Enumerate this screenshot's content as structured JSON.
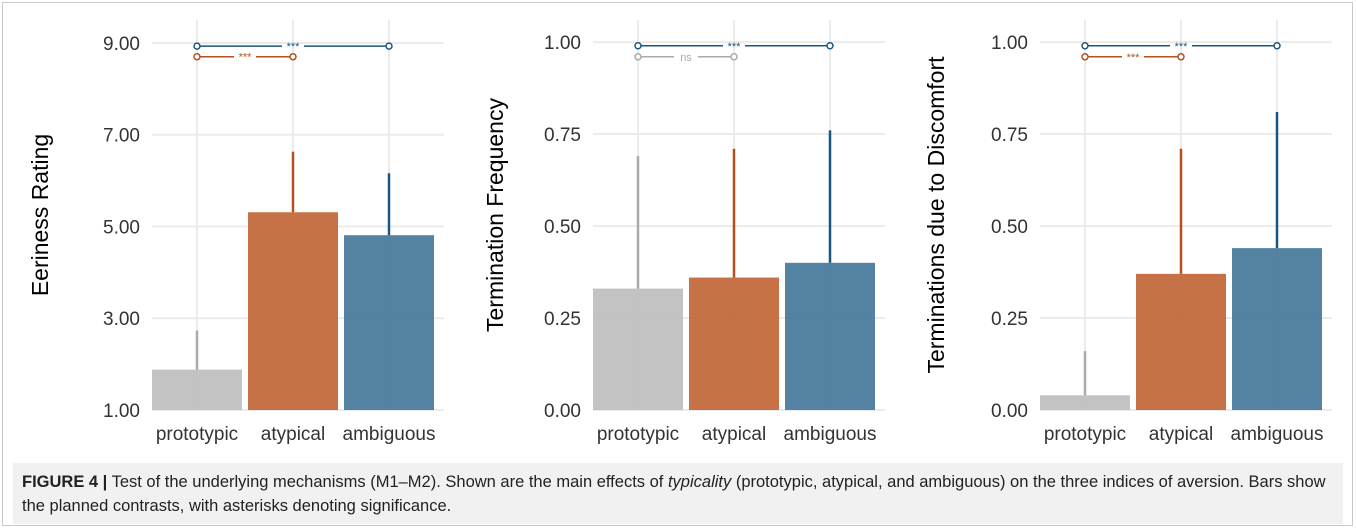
{
  "colors": {
    "prototypic": "#c0c0c0",
    "atypical": "#c46a3c",
    "ambiguous": "#4a7b9d",
    "prototypic_line": "#aaaaaa",
    "atypical_line": "#b4501d",
    "ambiguous_line": "#1a5680",
    "grid": "#ebebeb"
  },
  "chart_data": [
    {
      "type": "bar",
      "ylabel": "Eeriness Rating",
      "categories": [
        "prototypic",
        "atypical",
        "ambiguous"
      ],
      "values": [
        1.88,
        5.31,
        4.81
      ],
      "error_upper": [
        2.73,
        6.63,
        6.16
      ],
      "ylim": [
        1.0,
        9.5
      ],
      "yticks": [
        1.0,
        3.0,
        5.0,
        7.0,
        9.0
      ],
      "ytick_labels": [
        "1.00",
        "3.00",
        "5.00",
        "7.00",
        "9.00"
      ],
      "significance": [
        {
          "from": "prototypic",
          "to": "ambiguous",
          "y": 8.93,
          "label": "***",
          "color": "ambiguous_line"
        },
        {
          "from": "prototypic",
          "to": "atypical",
          "y": 8.7,
          "label": "***",
          "color": "atypical_line"
        }
      ]
    },
    {
      "type": "bar",
      "ylabel": "Termination Frequency",
      "categories": [
        "prototypic",
        "atypical",
        "ambiguous"
      ],
      "values": [
        0.33,
        0.36,
        0.4
      ],
      "error_upper": [
        0.69,
        0.71,
        0.76
      ],
      "ylim": [
        0.0,
        1.06
      ],
      "yticks": [
        0.0,
        0.25,
        0.5,
        0.75,
        1.0
      ],
      "ytick_labels": [
        "0.00",
        "0.25",
        "0.50",
        "0.75",
        "1.00"
      ],
      "significance": [
        {
          "from": "prototypic",
          "to": "ambiguous",
          "y": 0.99,
          "label": "***",
          "color": "ambiguous_line"
        },
        {
          "from": "prototypic",
          "to": "atypical",
          "y": 0.96,
          "label": "ns",
          "color": "prototypic_line"
        }
      ]
    },
    {
      "type": "bar",
      "ylabel": "Terminations due to Discomfort",
      "categories": [
        "prototypic",
        "atypical",
        "ambiguous"
      ],
      "values": [
        0.04,
        0.37,
        0.44
      ],
      "error_upper": [
        0.16,
        0.71,
        0.81
      ],
      "ylim": [
        0.0,
        1.06
      ],
      "yticks": [
        0.0,
        0.25,
        0.5,
        0.75,
        1.0
      ],
      "ytick_labels": [
        "0.00",
        "0.25",
        "0.50",
        "0.75",
        "1.00"
      ],
      "significance": [
        {
          "from": "prototypic",
          "to": "ambiguous",
          "y": 0.99,
          "label": "***",
          "color": "ambiguous_line"
        },
        {
          "from": "prototypic",
          "to": "atypical",
          "y": 0.96,
          "label": "***",
          "color": "atypical_line"
        }
      ]
    }
  ],
  "caption": {
    "label": "FIGURE 4 |",
    "text_before": " Test of the underlying mechanisms (M1–M2). Shown are the main effects of ",
    "emphasis": "typicality",
    "text_after": " (prototypic, atypical, and ambiguous) on the three indices of aversion. Bars show the planned contrasts, with asterisks denoting significance."
  }
}
